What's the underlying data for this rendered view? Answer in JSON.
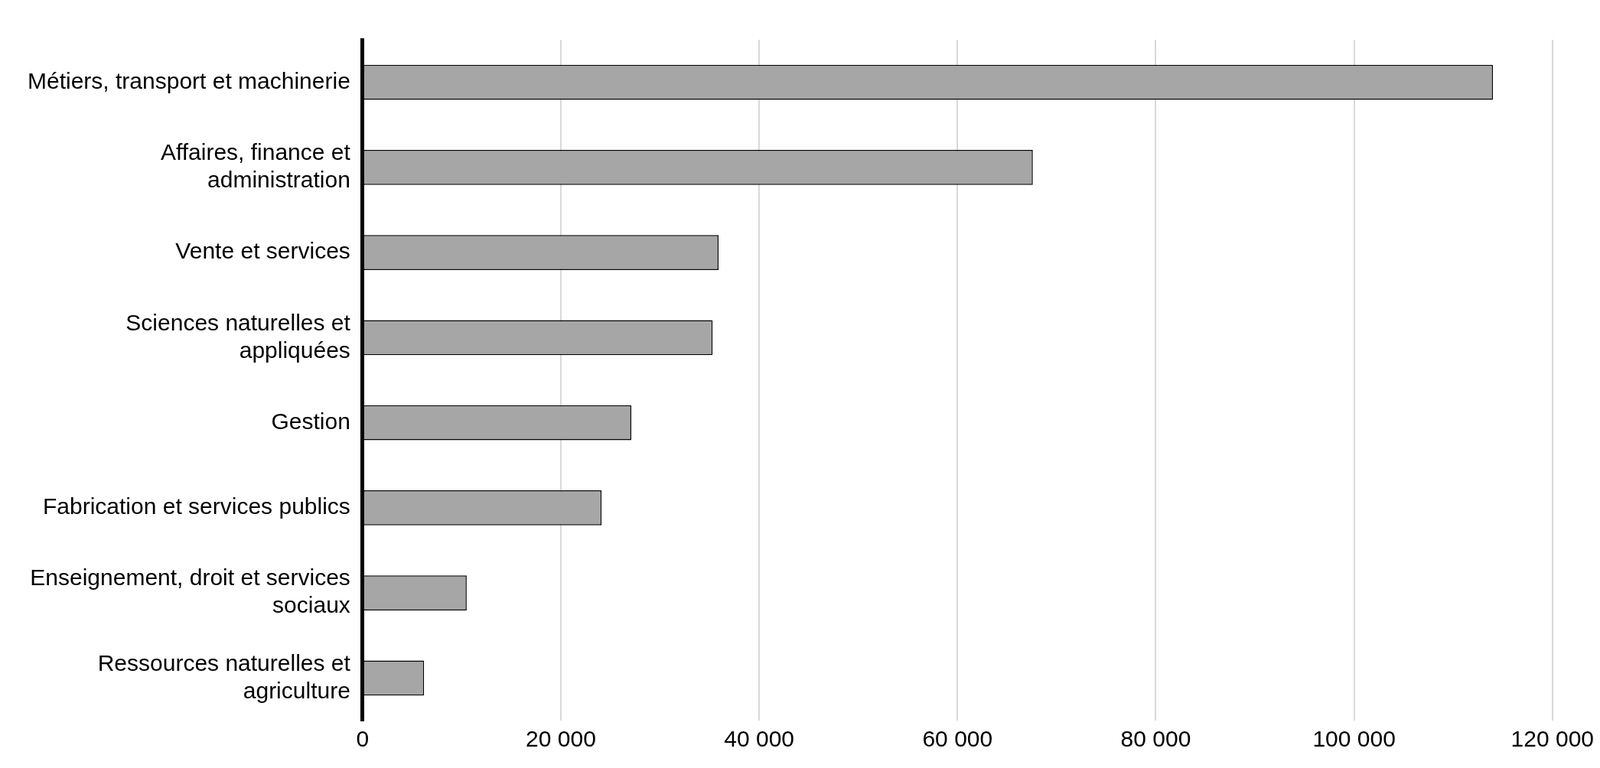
{
  "chart_data": {
    "type": "bar",
    "orientation": "horizontal",
    "categories": [
      "Métiers, transport et machinerie",
      "Affaires, finance et administration",
      "Vente et services",
      "Sciences naturelles et appliquées",
      "Gestion",
      "Fabrication et services publics",
      "Enseignement, droit et services sociaux",
      "Ressources naturelles et agriculture"
    ],
    "values": [
      114000,
      67600,
      35900,
      35300,
      27100,
      24100,
      10500,
      6200
    ],
    "color": "#a6a6a6",
    "xlim": [
      0,
      120000
    ],
    "xticks": [
      0,
      {
        "value": 20000,
        "label": "20 000"
      },
      {
        "value": 40000,
        "label": "40 000"
      },
      {
        "value": 60000,
        "label": "60 000"
      },
      {
        "value": 80000,
        "label": "80 000"
      },
      {
        "value": 100000,
        "label": "100 000"
      },
      {
        "value": 120000,
        "label": "120 000"
      }
    ],
    "grid": true
  }
}
